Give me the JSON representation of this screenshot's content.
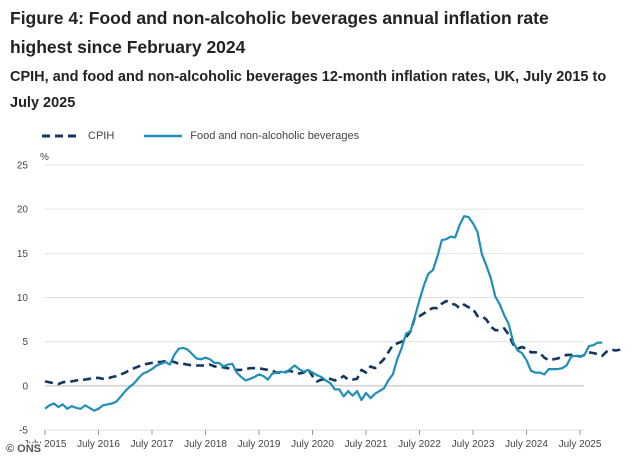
{
  "figure": {
    "title": "Figure 4: Food and non-alcoholic beverages annual inflation rate highest since February 2024",
    "subtitle": "CPIH, and food and non-alcoholic beverages 12-month inflation rates, UK, July 2015 to July 2025"
  },
  "copyright": "© ONS",
  "colors": {
    "cpih": "#13375f",
    "food": "#1f8fb8",
    "grid": "#e2e2e2",
    "zero": "#bbbbbb"
  },
  "chart_data": {
    "type": "line",
    "title": "CPIH, and food and non-alcoholic beverages 12-month inflation rates, UK, July 2015 to July 2025",
    "ylabel": "%",
    "xlabel": "",
    "ylim": [
      -5,
      25
    ],
    "yticks": [
      -5,
      0,
      5,
      10,
      15,
      20,
      25
    ],
    "xlim": [
      "July 2015",
      "July 2025"
    ],
    "xticks": [
      "July 2015",
      "July 2016",
      "July 2017",
      "July 2018",
      "July 2019",
      "July 2020",
      "July 2021",
      "July 2022",
      "July 2023",
      "July 2024",
      "July 2025"
    ],
    "legend_position": "top-left",
    "series": [
      {
        "name": "CPIH",
        "style": "dashed",
        "start": "July 2015",
        "frequency": "monthly",
        "values": [
          0.5,
          0.4,
          0.3,
          0.2,
          0.4,
          0.5,
          0.5,
          0.6,
          0.7,
          0.7,
          0.8,
          0.9,
          0.9,
          0.8,
          0.8,
          1.0,
          1.1,
          1.3,
          1.5,
          1.8,
          2.0,
          2.2,
          2.4,
          2.5,
          2.6,
          2.7,
          2.7,
          2.8,
          2.8,
          2.7,
          2.5,
          2.5,
          2.4,
          2.3,
          2.3,
          2.3,
          2.3,
          2.4,
          2.2,
          2.2,
          2.1,
          2.0,
          1.9,
          1.8,
          1.8,
          1.9,
          2.0,
          2.0,
          2.0,
          1.9,
          1.8,
          1.7,
          1.5,
          1.5,
          1.6,
          1.7,
          1.5,
          1.4,
          1.5,
          1.9,
          1.1,
          0.5,
          0.7,
          0.7,
          0.8,
          0.6,
          0.8,
          1.1,
          0.7,
          0.7,
          0.8,
          1.8,
          1.5,
          2.2,
          2.0,
          2.5,
          3.0,
          3.8,
          4.6,
          4.8,
          5.0,
          5.5,
          6.2,
          7.8,
          7.9,
          8.2,
          8.6,
          8.8,
          8.8,
          9.3,
          9.6,
          9.3,
          9.2,
          8.8,
          9.2,
          8.9,
          8.7,
          7.9,
          7.9,
          7.5,
          6.7,
          6.3,
          6.3,
          6.5,
          5.8,
          4.7,
          4.2,
          4.4,
          4.2,
          3.8,
          3.8,
          3.7,
          3.2,
          2.9,
          3.0,
          3.1,
          3.3,
          3.5,
          3.5,
          3.5,
          3.3,
          3.5,
          3.8,
          3.7,
          3.6,
          3.4,
          3.9,
          4.1,
          4.0,
          4.1,
          4.3
        ]
      },
      {
        "name": "Food and non-alcoholic beverages",
        "style": "solid",
        "start": "July 2015",
        "frequency": "monthly",
        "values": [
          -2.6,
          -2.2,
          -2.0,
          -2.4,
          -2.1,
          -2.6,
          -2.3,
          -2.5,
          -2.6,
          -2.2,
          -2.5,
          -2.8,
          -2.6,
          -2.2,
          -2.1,
          -2.0,
          -1.8,
          -1.2,
          -0.6,
          -0.1,
          0.3,
          0.9,
          1.4,
          1.6,
          1.9,
          2.3,
          2.5,
          2.7,
          2.4,
          3.5,
          4.2,
          4.3,
          4.1,
          3.6,
          3.1,
          3.0,
          3.2,
          3.0,
          2.6,
          2.6,
          2.2,
          2.4,
          2.5,
          1.5,
          1.0,
          0.6,
          0.8,
          1.0,
          1.3,
          1.1,
          0.7,
          1.4,
          1.5,
          1.6,
          1.5,
          1.9,
          2.3,
          1.9,
          1.6,
          1.8,
          1.5,
          1.2,
          1.0,
          0.6,
          0.3,
          -0.4,
          -0.4,
          -1.2,
          -0.6,
          -1.1,
          -0.6,
          -1.6,
          -0.8,
          -1.4,
          -0.9,
          -0.6,
          -0.3,
          0.6,
          1.3,
          3.0,
          4.3,
          5.9,
          6.2,
          7.9,
          9.7,
          11.4,
          12.7,
          13.1,
          14.6,
          16.5,
          16.6,
          16.9,
          16.8,
          18.2,
          19.2,
          19.1,
          18.4,
          17.4,
          14.9,
          13.6,
          12.2,
          10.1,
          9.2,
          8.0,
          7.0,
          5.0,
          4.0,
          3.7,
          2.9,
          1.7,
          1.5,
          1.5,
          1.3,
          1.9,
          1.9,
          1.9,
          2.0,
          2.3,
          3.3,
          3.4,
          3.3,
          3.5,
          4.5,
          4.6,
          4.9,
          4.9
        ]
      }
    ]
  }
}
